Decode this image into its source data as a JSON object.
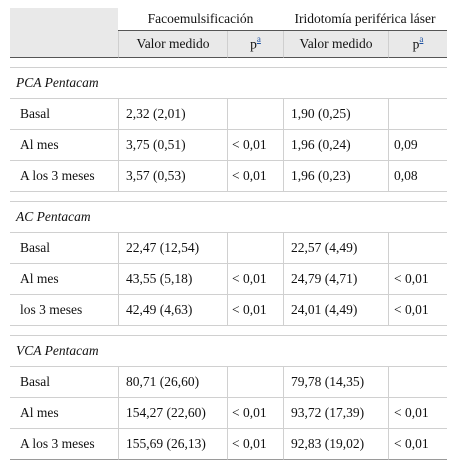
{
  "header": {
    "group1": "Facoemulsificación",
    "group2": "Iridotomía periférica láser",
    "col_valor1": "Valor medido",
    "col_p1": "p",
    "col_p1_note": "a",
    "col_valor2": "Valor medido",
    "col_p2": "p",
    "col_p2_note": "a"
  },
  "sections": [
    {
      "title": "PCA Pentacam",
      "rows": [
        {
          "label": "Basal",
          "v1": "2,32 (2,01)",
          "p1": "",
          "v2": "1,90 (0,25)",
          "p2": ""
        },
        {
          "label": "Al mes",
          "v1": "3,75 (0,51)",
          "p1": "< 0,01",
          "v2": "1,96 (0,24)",
          "p2": "0,09"
        },
        {
          "label": "A los 3 meses",
          "v1": "3,57 (0,53)",
          "p1": "< 0,01",
          "v2": "1,96 (0,23)",
          "p2": "0,08"
        }
      ]
    },
    {
      "title": "AC Pentacam",
      "rows": [
        {
          "label": "Basal",
          "v1": "22,47 (12,54)",
          "p1": "",
          "v2": "22,57 (4,49)",
          "p2": ""
        },
        {
          "label": "Al mes",
          "v1": "43,55 (5,18)",
          "p1": "< 0,01",
          "v2": "24,79 (4,71)",
          "p2": "< 0,01"
        },
        {
          "label": "los 3 meses",
          "v1": "42,49 (4,63)",
          "p1": "< 0,01",
          "v2": "24,01 (4,49)",
          "p2": "< 0,01"
        }
      ]
    },
    {
      "title": "VCA Pentacam",
      "rows": [
        {
          "label": "Basal",
          "v1": "80,71 (26,60)",
          "p1": "",
          "v2": "79,78 (14,35)",
          "p2": ""
        },
        {
          "label": "Al mes",
          "v1": "154,27 (22,60)",
          "p1": "< 0,01",
          "v2": "93,72 (17,39)",
          "p2": "< 0,01"
        },
        {
          "label": "A los 3 meses",
          "v1": "155,69 (26,13)",
          "p1": "< 0,01",
          "v2": "92,83 (19,02)",
          "p2": "< 0,01"
        }
      ]
    }
  ]
}
